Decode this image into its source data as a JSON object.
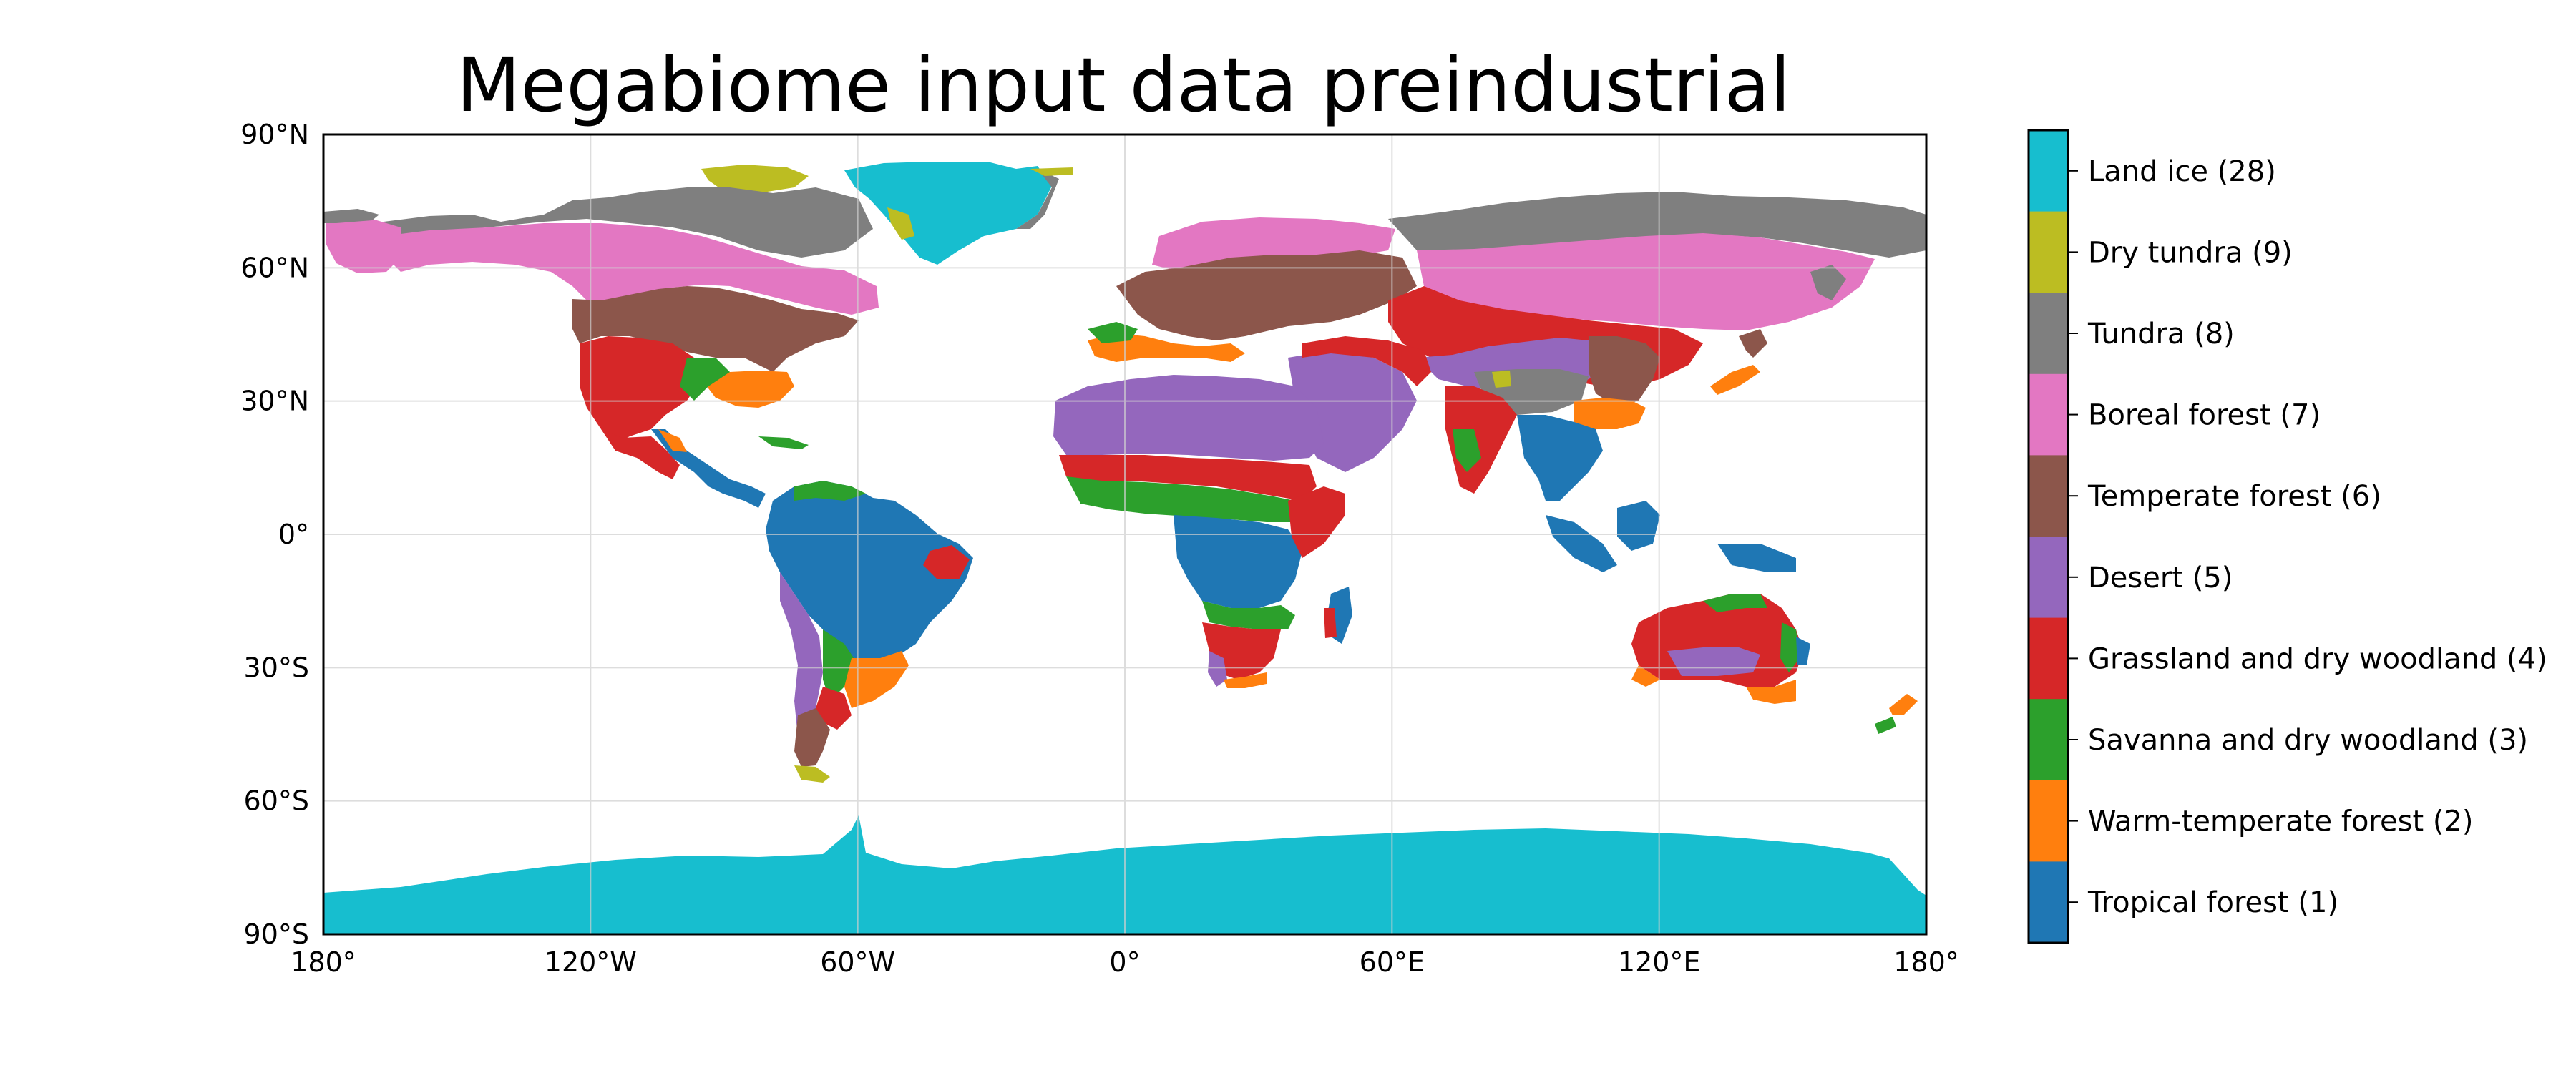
{
  "title": "Megabiome input data preindustrial",
  "axes": {
    "lat_ticks": [
      "90°N",
      "60°N",
      "30°N",
      "0°",
      "30°S",
      "60°S",
      "90°S"
    ],
    "lon_ticks": [
      "180°",
      "120°W",
      "60°W",
      "0°",
      "60°E",
      "120°E",
      "180°"
    ]
  },
  "legend": {
    "placement": "right colorbar",
    "items": [
      {
        "label": "Land ice (28)",
        "color": "#17becf"
      },
      {
        "label": "Dry tundra (9)",
        "color": "#bcbd22"
      },
      {
        "label": "Tundra (8)",
        "color": "#7f7f7f"
      },
      {
        "label": "Boreal forest (7)",
        "color": "#e377c2"
      },
      {
        "label": "Temperate forest (6)",
        "color": "#8c564b"
      },
      {
        "label": "Desert (5)",
        "color": "#9467bd"
      },
      {
        "label": "Grassland and dry woodland (4)",
        "color": "#d62728"
      },
      {
        "label": "Savanna and dry woodland (3)",
        "color": "#2ca02c"
      },
      {
        "label": "Warm-temperate forest (2)",
        "color": "#ff7f0e"
      },
      {
        "label": "Tropical forest (1)",
        "color": "#1f77b4"
      }
    ]
  },
  "chart_data": {
    "type": "heatmap",
    "title": "Megabiome input data preindustrial",
    "projection": "PlateCarree",
    "xlim": [
      -180,
      180
    ],
    "ylim": [
      -90,
      90
    ],
    "grid": true,
    "regions": [
      {
        "name": "Antarctica",
        "biome": "Land ice (28)",
        "lon": [
          -180,
          180
        ],
        "lat": [
          -90,
          -65
        ]
      },
      {
        "name": "Greenland",
        "biome": "Land ice (28)",
        "lon": [
          -60,
          -20
        ],
        "lat": [
          60,
          83
        ]
      },
      {
        "name": "Arctic Eurasia",
        "biome": "Tundra (8)",
        "lon": [
          40,
          180
        ],
        "lat": [
          64,
          75
        ]
      },
      {
        "name": "Arctic America",
        "biome": "Tundra (8)",
        "lon": [
          -170,
          -65
        ],
        "lat": [
          63,
          80
        ]
      },
      {
        "name": "Arctic islands",
        "biome": "Dry tundra (9)",
        "lon": [
          -95,
          -75
        ],
        "lat": [
          75,
          83
        ]
      },
      {
        "name": "Boreal America",
        "biome": "Boreal forest (7)",
        "lon": [
          -165,
          -60
        ],
        "lat": [
          50,
          68
        ]
      },
      {
        "name": "Boreal Eurasia",
        "biome": "Boreal forest (7)",
        "lon": [
          5,
          145
        ],
        "lat": [
          50,
          70
        ]
      },
      {
        "name": "Temperate America",
        "biome": "Temperate forest (6)",
        "lon": [
          -125,
          -65
        ],
        "lat": [
          38,
          55
        ]
      },
      {
        "name": "Temperate Europe",
        "biome": "Temperate forest (6)",
        "lon": [
          -10,
          50
        ],
        "lat": [
          43,
          62
        ]
      },
      {
        "name": "Temperate Patagonia",
        "biome": "Temperate forest (6)",
        "lon": [
          -75,
          -64
        ],
        "lat": [
          -52,
          -38
        ]
      },
      {
        "name": "Great Plains",
        "biome": "Grassland and dry woodland (4)",
        "lon": [
          -120,
          -95
        ],
        "lat": [
          25,
          50
        ]
      },
      {
        "name": "Central Asia steppe",
        "biome": "Grassland and dry woodland (4)",
        "lon": [
          45,
          95
        ],
        "lat": [
          35,
          53
        ]
      },
      {
        "name": "Sahel",
        "biome": "Grassland and dry woodland (4)",
        "lon": [
          -15,
          40
        ],
        "lat": [
          10,
          18
        ]
      },
      {
        "name": "Southern Africa",
        "biome": "Grassland and dry woodland (4)",
        "lon": [
          15,
          35
        ],
        "lat": [
          -30,
          -15
        ]
      },
      {
        "name": "Australia",
        "biome": "Grassland and dry woodland (4)",
        "lon": [
          115,
          150
        ],
        "lat": [
          -35,
          -15
        ]
      },
      {
        "name": "Sahara",
        "biome": "Desert (5)",
        "lon": [
          -17,
          35
        ],
        "lat": [
          15,
          30
        ]
      },
      {
        "name": "Arabia",
        "biome": "Desert (5)",
        "lon": [
          35,
          58
        ],
        "lat": [
          15,
          30
        ]
      },
      {
        "name": "Central Asia desert",
        "biome": "Desert (5)",
        "lon": [
          50,
          110
        ],
        "lat": [
          35,
          45
        ]
      },
      {
        "name": "Australian desert",
        "biome": "Desert (5)",
        "lon": [
          122,
          142
        ],
        "lat": [
          -30,
          -22
        ]
      },
      {
        "name": "Amazon",
        "biome": "Tropical forest (1)",
        "lon": [
          -80,
          -35
        ],
        "lat": [
          -20,
          10
        ]
      },
      {
        "name": "Congo",
        "biome": "Tropical forest (1)",
        "lon": [
          8,
          40
        ],
        "lat": [
          -15,
          8
        ]
      },
      {
        "name": "Southeast Asia",
        "biome": "Tropical forest (1)",
        "lon": [
          95,
          155
        ],
        "lat": [
          -10,
          25
        ]
      },
      {
        "name": "African savanna",
        "biome": "Savanna and dry woodland (3)",
        "lon": [
          -15,
          40
        ],
        "lat": [
          5,
          12
        ]
      },
      {
        "name": "Brazilian savanna",
        "biome": "Savanna and dry woodland (3)",
        "lon": [
          -65,
          -40
        ],
        "lat": [
          -35,
          -15
        ]
      },
      {
        "name": "Eastern China",
        "biome": "Warm-temperate forest (2)",
        "lon": [
          105,
          122
        ],
        "lat": [
          23,
          33
        ]
      },
      {
        "name": "SE United States",
        "biome": "Warm-temperate forest (2)",
        "lon": [
          -95,
          -78
        ],
        "lat": [
          28,
          37
        ]
      },
      {
        "name": "Southern South America",
        "biome": "Warm-temperate forest (2)",
        "lon": [
          -62,
          -47
        ],
        "lat": [
          -35,
          -25
        ]
      },
      {
        "name": "New Zealand",
        "biome": "Warm-temperate forest (2)",
        "lon": [
          166,
          178
        ],
        "lat": [
          -47,
          -34
        ]
      }
    ]
  }
}
